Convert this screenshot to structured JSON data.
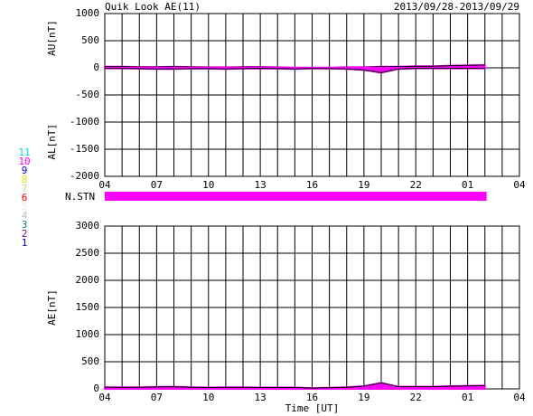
{
  "chart_data": [
    {
      "type": "line",
      "title": "Quik Look AE(11)",
      "subtitle": "2013/09/28-2013/09/29",
      "ylabels": [
        "AU[nT]",
        "AL[nT]"
      ],
      "x": [
        0,
        1,
        2,
        3,
        4,
        5,
        6,
        7,
        8,
        9,
        10,
        11,
        12,
        13,
        14,
        15,
        16,
        17,
        18,
        19,
        20,
        21,
        22
      ],
      "series": [
        {
          "color": "#ff00ff",
          "values": [
            20,
            20,
            15,
            15,
            20,
            15,
            10,
            10,
            15,
            15,
            10,
            5,
            5,
            5,
            10,
            10,
            20,
            20,
            30,
            30,
            40,
            45,
            50
          ]
        },
        {
          "color": "#ff00ff",
          "values": [
            -10,
            -10,
            -15,
            -20,
            -20,
            -15,
            -15,
            -20,
            -15,
            -10,
            -15,
            -20,
            -10,
            -15,
            -20,
            -40,
            -90,
            -20,
            -10,
            -10,
            -10,
            -10,
            -10
          ]
        }
      ],
      "xlim": [
        0,
        24
      ],
      "xticks": [
        {
          "value": 0,
          "label": "04"
        },
        {
          "value": 3,
          "label": "07"
        },
        {
          "value": 6,
          "label": "10"
        },
        {
          "value": 9,
          "label": "13"
        },
        {
          "value": 12,
          "label": "16"
        },
        {
          "value": 15,
          "label": "19"
        },
        {
          "value": 18,
          "label": "22"
        },
        {
          "value": 21,
          "label": "01"
        },
        {
          "value": 24,
          "label": "04"
        }
      ],
      "xgrid": [
        0,
        1,
        2,
        3,
        4,
        5,
        6,
        7,
        8,
        9,
        10,
        11,
        12,
        13,
        14,
        15,
        16,
        17,
        18,
        19,
        20,
        21,
        22,
        23,
        24
      ],
      "ylim": [
        -2000,
        1000
      ],
      "yticks": [
        1000,
        500,
        0,
        -500,
        -1000,
        -1500,
        -2000
      ],
      "grid": true
    },
    {
      "type": "line",
      "ylabels": [
        "AE[nT]"
      ],
      "xlabel": "Time [UT]",
      "x": [
        0,
        1,
        2,
        3,
        4,
        5,
        6,
        7,
        8,
        9,
        10,
        11,
        12,
        13,
        14,
        15,
        16,
        17,
        18,
        19,
        20,
        21,
        22
      ],
      "series": [
        {
          "color": "#ff00ff",
          "values": [
            30,
            30,
            30,
            35,
            40,
            30,
            25,
            30,
            30,
            25,
            25,
            25,
            15,
            20,
            30,
            50,
            110,
            40,
            40,
            40,
            50,
            55,
            60
          ]
        }
      ],
      "xlim": [
        0,
        24
      ],
      "xticks": [
        {
          "value": 0,
          "label": "04"
        },
        {
          "value": 3,
          "label": "07"
        },
        {
          "value": 6,
          "label": "10"
        },
        {
          "value": 9,
          "label": "13"
        },
        {
          "value": 12,
          "label": "16"
        },
        {
          "value": 15,
          "label": "19"
        },
        {
          "value": 18,
          "label": "22"
        },
        {
          "value": 21,
          "label": "01"
        },
        {
          "value": 24,
          "label": "04"
        }
      ],
      "xgrid": [
        0,
        1,
        2,
        3,
        4,
        5,
        6,
        7,
        8,
        9,
        10,
        11,
        12,
        13,
        14,
        15,
        16,
        17,
        18,
        19,
        20,
        21,
        22,
        23,
        24
      ],
      "ylim": [
        0,
        3000
      ],
      "yticks": [
        3000,
        2500,
        2000,
        1500,
        1000,
        500,
        0
      ],
      "grid": true
    }
  ],
  "nstn": {
    "label": "N.STN",
    "x": [
      0,
      22.1
    ],
    "color": "#ff00ff"
  },
  "stations": {
    "labels": [
      "11",
      "10",
      "9",
      "8",
      "7",
      "6",
      "5",
      "4",
      "3",
      "2",
      "1"
    ],
    "colors": [
      "#00e0e0",
      "#ff00ff",
      "#0000ff",
      "#e0e000",
      "#c0e080",
      "#ff0000",
      "#e8e8e8",
      "#c0c0c0",
      "#008080",
      "#8000a0",
      "#0000c0"
    ]
  }
}
